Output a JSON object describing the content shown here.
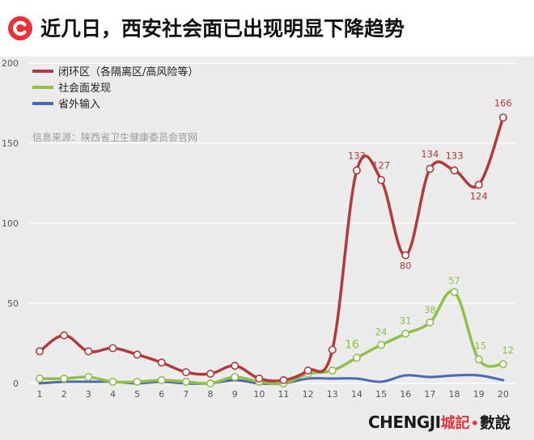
{
  "header": {
    "title": "近几日，西安社会面已出现明显下降趋势"
  },
  "colors": {
    "closed": "#b23a3a",
    "social": "#8fc04a",
    "outside": "#4a69b0",
    "logo": "#e8323a"
  },
  "brand": {
    "part1": "CHENGJI",
    "part2": "城記",
    "dot": "•",
    "part3": "數說"
  },
  "chart_data": {
    "type": "line",
    "title": "",
    "xlabel": "",
    "ylabel": "",
    "source": "信息来源：陕西省卫生健康委员会官网",
    "legend_position": "top-left",
    "grid": true,
    "ylim": [
      0,
      200
    ],
    "yticks": [
      0,
      50,
      100,
      150,
      200
    ],
    "x": [
      1,
      2,
      3,
      4,
      5,
      6,
      7,
      8,
      9,
      10,
      11,
      12,
      13,
      14,
      15,
      16,
      17,
      18,
      19,
      20
    ],
    "series": [
      {
        "name": "闭环区（各隔离区/高风险等）",
        "key": "closed",
        "values": [
          20,
          30,
          20,
          22,
          18,
          13,
          7,
          6,
          11,
          3,
          2,
          8,
          21,
          133,
          127,
          80,
          134,
          133,
          124,
          166
        ],
        "labels": [
          null,
          null,
          null,
          null,
          null,
          null,
          null,
          null,
          null,
          null,
          null,
          null,
          null,
          "133",
          "127",
          "80",
          "134",
          "133",
          "124",
          "166"
        ]
      },
      {
        "name": "社会面发现",
        "key": "social",
        "values": [
          3,
          3,
          4,
          1,
          1,
          2,
          1,
          0,
          4,
          1,
          0,
          6,
          8,
          16,
          24,
          31,
          38,
          57,
          15,
          12
        ],
        "labels": [
          null,
          null,
          null,
          null,
          null,
          null,
          null,
          null,
          null,
          null,
          null,
          null,
          null,
          "16",
          "24",
          "31",
          "38",
          "57",
          "15",
          "12"
        ]
      },
      {
        "name": "省外输入",
        "key": "outside",
        "values": [
          0,
          1,
          1,
          1,
          0,
          1,
          0,
          0,
          2,
          0,
          0,
          3,
          3,
          3,
          1,
          5,
          4,
          5,
          5,
          2
        ],
        "labels": []
      }
    ]
  }
}
